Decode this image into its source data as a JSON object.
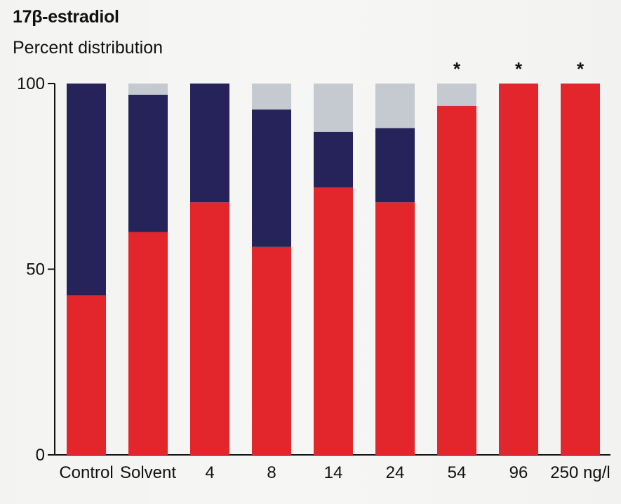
{
  "chart_data": {
    "type": "bar",
    "stacked": true,
    "title": "17β-estradiol",
    "ylabel": "Percent distribution",
    "xlabel": "",
    "ylim": [
      0,
      100
    ],
    "yticks": [
      0,
      50,
      100
    ],
    "categories": [
      "Control",
      "Solvent",
      "4",
      "8",
      "14",
      "24",
      "54",
      "96",
      "250 ng/l"
    ],
    "series": [
      {
        "color": "#e3262c",
        "values": [
          43,
          60,
          68,
          56,
          72,
          68,
          94,
          100,
          100
        ]
      },
      {
        "color": "#25235a",
        "values": [
          57,
          37,
          32,
          37,
          15,
          20,
          0,
          0,
          0
        ]
      },
      {
        "color": "#c5cad0",
        "values": [
          0,
          3,
          0,
          7,
          13,
          12,
          6,
          0,
          0
        ]
      }
    ],
    "annotations": [
      {
        "category": "54",
        "text": "*"
      },
      {
        "category": "96",
        "text": "*"
      },
      {
        "category": "250 ng/l",
        "text": "*"
      }
    ],
    "grid": false,
    "legend": "none"
  }
}
